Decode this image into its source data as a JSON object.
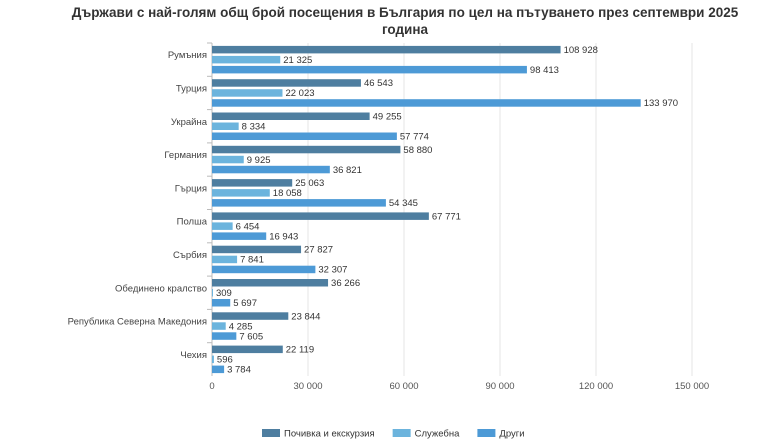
{
  "chart_data": {
    "type": "bar",
    "orientation": "horizontal",
    "title": "Държави с най-голям общ брой посещения в България по цел на пътуването през септември 2025 година",
    "title_lines": [
      "Държави с най-голям общ брой посещения в България по цел на пътуването през септември 2025",
      "година"
    ],
    "categories": [
      "Румъния",
      "Турция",
      "Украйна",
      "Германия",
      "Гърция",
      "Полша",
      "Сърбия",
      "Обединено кралство",
      "Република Северна Македония",
      "Чехия"
    ],
    "series": [
      {
        "name": "Почивка и екскурзия",
        "color": "#4e7ea0",
        "values": [
          108928,
          46543,
          49255,
          58880,
          25063,
          67771,
          27827,
          36266,
          23844,
          22119
        ]
      },
      {
        "name": "Служебна",
        "color": "#6cb4dd",
        "values": [
          21325,
          22023,
          8334,
          9925,
          18058,
          6454,
          7841,
          309,
          4285,
          596
        ]
      },
      {
        "name": "Други",
        "color": "#4d9ad6",
        "values": [
          98413,
          133970,
          57774,
          36821,
          54345,
          16943,
          32307,
          5697,
          7605,
          3784
        ]
      }
    ],
    "value_labels": [
      [
        "108 928",
        "46 543",
        "49 255",
        "58 880",
        "25 063",
        "67 771",
        "27 827",
        "36 266",
        "23 844",
        "22 119"
      ],
      [
        "21 325",
        "22 023",
        "8 334",
        "9 925",
        "18 058",
        "6 454",
        "7 841",
        "309",
        "4 285",
        "596"
      ],
      [
        "98 413",
        "133 970",
        "57 774",
        "36 821",
        "54 345",
        "16 943",
        "32 307",
        "5 697",
        "7 605",
        "3 784"
      ]
    ],
    "xlim": [
      0,
      150000
    ],
    "xticks": [
      0,
      30000,
      60000,
      90000,
      120000,
      150000
    ],
    "xtick_labels": [
      "0",
      "30 000",
      "60 000",
      "90 000",
      "120 000",
      "150 000"
    ],
    "grid": true,
    "legend": "bottom-center"
  }
}
